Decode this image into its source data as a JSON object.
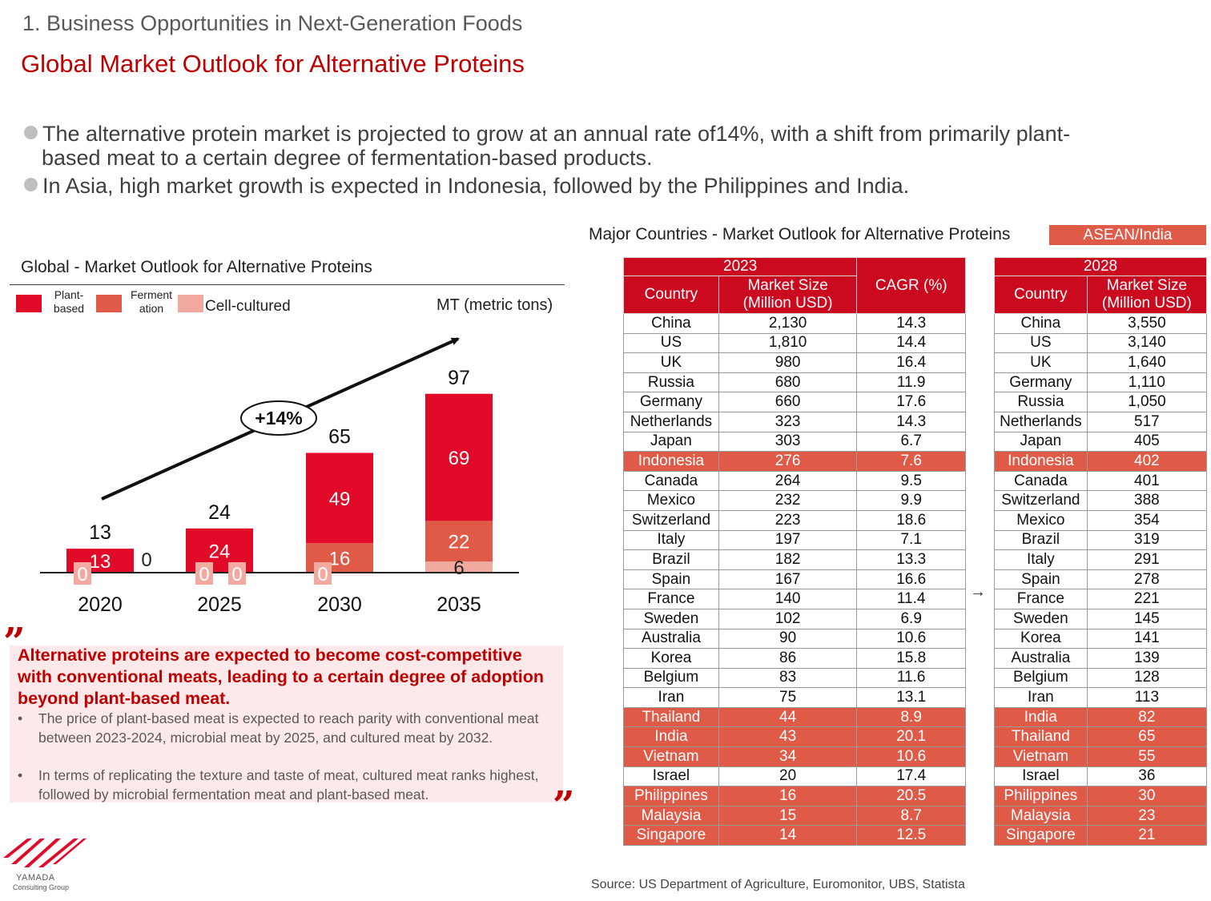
{
  "header": {
    "section": "1. Business Opportunities in Next-Generation Foods",
    "title": "Global Market Outlook for Alternative Proteins"
  },
  "bullets": [
    {
      "line1": "The alternative protein market is projected to grow at an annual rate of14%, with a shift from primarily plant-",
      "line2": "based meat to a certain degree of fermentation-based products."
    },
    {
      "line1": "In Asia, high market growth is expected in Indonesia, followed by the Philippines and India."
    }
  ],
  "chart_data": {
    "type": "bar",
    "stacked": true,
    "title": "Global - Market Outlook for Alternative Proteins",
    "unit": "MT (metric tons)",
    "categories": [
      "2020",
      "2025",
      "2030",
      "2035"
    ],
    "series": [
      {
        "name": "Plant-based",
        "legend_line1": "Plant-",
        "legend_line2": "based",
        "color": "#e10a28",
        "values": [
          13,
          24,
          49,
          69
        ]
      },
      {
        "name": "Fermentation",
        "legend_line1": "Ferment",
        "legend_line2": "ation",
        "color": "#e05a48",
        "values": [
          0,
          0,
          16,
          22
        ]
      },
      {
        "name": "Cell-cultured",
        "color": "#f2aaa0",
        "values": [
          0,
          0,
          0,
          6
        ]
      }
    ],
    "totals": [
      13,
      24,
      65,
      97
    ],
    "growth_annotation": "+14%",
    "ylim": [
      0,
      100
    ]
  },
  "quote": {
    "open_mark": "”",
    "close_mark": "”",
    "headline": "Alternative proteins are expected to become cost-competitive with conventional meats, leading to a certain degree of adoption beyond plant-based meat.",
    "bullet_char": "•",
    "points": [
      "The price of plant-based meat is expected to reach parity with conventional meat between 2023-2024, microbial meat by 2025, and cultured meat by 2032.",
      "In terms of replicating the texture and taste of meat, cultured meat ranks highest, followed by microbial fermentation meat and plant-based meat."
    ]
  },
  "logo": {
    "name": "YAMADA",
    "sub": "Consulting Group",
    "color": "#e10a28"
  },
  "table_section": {
    "title": "Major Countries - Market Outlook for Alternative Proteins",
    "badge": "ASEAN/India",
    "highlight_color": "#e05a48",
    "arrow": "→",
    "t2023": {
      "year": "2023",
      "col_country": "Country",
      "col_size_1": "Market Size",
      "col_size_2": "(Million USD)",
      "col_cagr": "CAGR (%)",
      "rows": [
        {
          "country": "China",
          "size": "2,130",
          "cagr": "14.3",
          "hl": false
        },
        {
          "country": "US",
          "size": "1,810",
          "cagr": "14.4",
          "hl": false
        },
        {
          "country": "UK",
          "size": "980",
          "cagr": "16.4",
          "hl": false
        },
        {
          "country": "Russia",
          "size": "680",
          "cagr": "11.9",
          "hl": false
        },
        {
          "country": "Germany",
          "size": "660",
          "cagr": "17.6",
          "hl": false
        },
        {
          "country": "Netherlands",
          "size": "323",
          "cagr": "14.3",
          "hl": false
        },
        {
          "country": "Japan",
          "size": "303",
          "cagr": "6.7",
          "hl": false
        },
        {
          "country": "Indonesia",
          "size": "276",
          "cagr": "7.6",
          "hl": true
        },
        {
          "country": "Canada",
          "size": "264",
          "cagr": "9.5",
          "hl": false
        },
        {
          "country": "Mexico",
          "size": "232",
          "cagr": "9.9",
          "hl": false
        },
        {
          "country": "Switzerland",
          "size": "223",
          "cagr": "18.6",
          "hl": false
        },
        {
          "country": "Italy",
          "size": "197",
          "cagr": "7.1",
          "hl": false
        },
        {
          "country": "Brazil",
          "size": "182",
          "cagr": "13.3",
          "hl": false
        },
        {
          "country": "Spain",
          "size": "167",
          "cagr": "16.6",
          "hl": false
        },
        {
          "country": "France",
          "size": "140",
          "cagr": "11.4",
          "hl": false
        },
        {
          "country": "Sweden",
          "size": "102",
          "cagr": "6.9",
          "hl": false
        },
        {
          "country": "Australia",
          "size": "90",
          "cagr": "10.6",
          "hl": false
        },
        {
          "country": "Korea",
          "size": "86",
          "cagr": "15.8",
          "hl": false
        },
        {
          "country": "Belgium",
          "size": "83",
          "cagr": "11.6",
          "hl": false
        },
        {
          "country": "Iran",
          "size": "75",
          "cagr": "13.1",
          "hl": false
        },
        {
          "country": "Thailand",
          "size": "44",
          "cagr": "8.9",
          "hl": true
        },
        {
          "country": "India",
          "size": "43",
          "cagr": "20.1",
          "hl": true
        },
        {
          "country": "Vietnam",
          "size": "34",
          "cagr": "10.6",
          "hl": true
        },
        {
          "country": "Israel",
          "size": "20",
          "cagr": "17.4",
          "hl": false
        },
        {
          "country": "Philippines",
          "size": "16",
          "cagr": "20.5",
          "hl": true
        },
        {
          "country": "Malaysia",
          "size": "15",
          "cagr": "8.7",
          "hl": true
        },
        {
          "country": "Singapore",
          "size": "14",
          "cagr": "12.5",
          "hl": true
        }
      ]
    },
    "t2028": {
      "year": "2028",
      "col_country": "Country",
      "col_size_1": "Market Size",
      "col_size_2": "(Million USD)",
      "rows": [
        {
          "country": "China",
          "size": "3,550",
          "hl": false
        },
        {
          "country": "US",
          "size": "3,140",
          "hl": false
        },
        {
          "country": "UK",
          "size": "1,640",
          "hl": false
        },
        {
          "country": "Germany",
          "size": "1,110",
          "hl": false
        },
        {
          "country": "Russia",
          "size": "1,050",
          "hl": false
        },
        {
          "country": "Netherlands",
          "size": "517",
          "hl": false
        },
        {
          "country": "Japan",
          "size": "405",
          "hl": false
        },
        {
          "country": "Indonesia",
          "size": "402",
          "hl": true
        },
        {
          "country": "Canada",
          "size": "401",
          "hl": false
        },
        {
          "country": "Switzerland",
          "size": "388",
          "hl": false
        },
        {
          "country": "Mexico",
          "size": "354",
          "hl": false
        },
        {
          "country": "Brazil",
          "size": "319",
          "hl": false
        },
        {
          "country": "Italy",
          "size": "291",
          "hl": false
        },
        {
          "country": "Spain",
          "size": "278",
          "hl": false
        },
        {
          "country": "France",
          "size": "221",
          "hl": false
        },
        {
          "country": "Sweden",
          "size": "145",
          "hl": false
        },
        {
          "country": "Korea",
          "size": "141",
          "hl": false
        },
        {
          "country": "Australia",
          "size": "139",
          "hl": false
        },
        {
          "country": "Belgium",
          "size": "128",
          "hl": false
        },
        {
          "country": "Iran",
          "size": "113",
          "hl": false
        },
        {
          "country": "India",
          "size": "82",
          "hl": true
        },
        {
          "country": "Thailand",
          "size": "65",
          "hl": true
        },
        {
          "country": "Vietnam",
          "size": "55",
          "hl": true
        },
        {
          "country": "Israel",
          "size": "36",
          "hl": false
        },
        {
          "country": "Philippines",
          "size": "30",
          "hl": true
        },
        {
          "country": "Malaysia",
          "size": "23",
          "hl": true
        },
        {
          "country": "Singapore",
          "size": "21",
          "hl": true
        }
      ]
    }
  },
  "source": "Source: US Department of Agriculture, Euromonitor, UBS, Statista"
}
